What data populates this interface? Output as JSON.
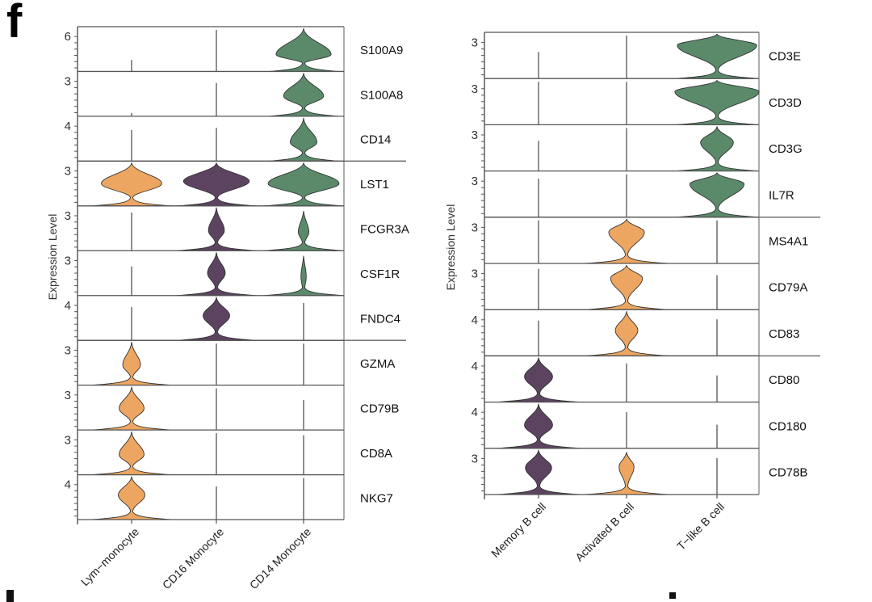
{
  "panel_label": "f",
  "chart_data": [
    {
      "type": "violin",
      "name": "monocyte-subtypes",
      "ylabel": "Expression Level",
      "categories": [
        "Lym−monocyte",
        "CD16 Monocyte",
        "CD14 Monocyte"
      ],
      "colors": {
        "Lym−monocyte": "#EDA661",
        "CD16 Monocyte": "#5C4461",
        "CD14 Monocyte": "#5A8A6A"
      },
      "group_breaks_after": [
        "CD14",
        "FNDC4"
      ],
      "genes": [
        {
          "gene": "S100A9",
          "ytick": 6,
          "ymax": 7,
          "violins": [
            {
              "cat": 0,
              "expressed": false,
              "stem": 0.28
            },
            {
              "cat": 1,
              "expressed": false,
              "stem": 1.0
            },
            {
              "cat": 2,
              "expressed": true,
              "peak": 0.38,
              "width": 0.62,
              "top": 1.0,
              "base": 0.75
            }
          ]
        },
        {
          "gene": "S100A8",
          "ytick": 3,
          "ymax": 4,
          "violins": [
            {
              "cat": 0,
              "expressed": false,
              "stem": 0.08
            },
            {
              "cat": 1,
              "expressed": false,
              "stem": 0.8
            },
            {
              "cat": 2,
              "expressed": true,
              "peak": 0.45,
              "width": 0.45,
              "top": 1.0,
              "base": 0.75
            }
          ]
        },
        {
          "gene": "CD14",
          "ytick": 4,
          "ymax": 5,
          "violins": [
            {
              "cat": 0,
              "expressed": false,
              "stem": 0.75
            },
            {
              "cat": 1,
              "expressed": false,
              "stem": 0.8
            },
            {
              "cat": 2,
              "expressed": true,
              "peak": 0.42,
              "width": 0.3,
              "top": 1.0,
              "base": 0.75
            }
          ]
        },
        {
          "gene": "LST1",
          "ytick": 3,
          "ymax": 3.8,
          "violins": [
            {
              "cat": 0,
              "expressed": true,
              "peak": 0.5,
              "width": 0.68,
              "top": 1.0,
              "base": 0.85
            },
            {
              "cat": 1,
              "expressed": true,
              "peak": 0.55,
              "width": 0.74,
              "top": 1.0,
              "base": 0.85
            },
            {
              "cat": 2,
              "expressed": true,
              "peak": 0.5,
              "width": 0.8,
              "top": 1.0,
              "base": 0.85
            }
          ]
        },
        {
          "gene": "FCGR3A",
          "ytick": 3,
          "ymax": 3.8,
          "violins": [
            {
              "cat": 0,
              "expressed": false,
              "stem": 0.92
            },
            {
              "cat": 1,
              "expressed": true,
              "peak": 0.45,
              "width": 0.18,
              "top": 1.0,
              "base": 0.85
            },
            {
              "cat": 2,
              "expressed": true,
              "peak": 0.42,
              "width": 0.12,
              "top": 0.92,
              "base": 0.85
            }
          ]
        },
        {
          "gene": "CSF1R",
          "ytick": 3,
          "ymax": 3.8,
          "violins": [
            {
              "cat": 0,
              "expressed": false,
              "stem": 0.7
            },
            {
              "cat": 1,
              "expressed": true,
              "peak": 0.5,
              "width": 0.2,
              "top": 1.0,
              "base": 0.85
            },
            {
              "cat": 2,
              "expressed": true,
              "peak": 0.42,
              "width": 0.06,
              "top": 0.92,
              "base": 0.85
            }
          ]
        },
        {
          "gene": "FNDC4",
          "ytick": 4,
          "ymax": 5,
          "violins": [
            {
              "cat": 0,
              "expressed": false,
              "stem": 0.8
            },
            {
              "cat": 1,
              "expressed": true,
              "peak": 0.55,
              "width": 0.3,
              "top": 1.0,
              "base": 0.85
            },
            {
              "cat": 2,
              "expressed": false,
              "stem": 0.9
            }
          ]
        },
        {
          "gene": "GZMA",
          "ytick": 3,
          "ymax": 3.8,
          "violins": [
            {
              "cat": 0,
              "expressed": true,
              "peak": 0.45,
              "width": 0.2,
              "top": 1.0,
              "base": 0.85
            },
            {
              "cat": 1,
              "expressed": false,
              "stem": 1.0
            },
            {
              "cat": 2,
              "expressed": false,
              "stem": 1.0
            }
          ]
        },
        {
          "gene": "CD79B",
          "ytick": 3,
          "ymax": 3.8,
          "violins": [
            {
              "cat": 0,
              "expressed": true,
              "peak": 0.48,
              "width": 0.28,
              "top": 1.0,
              "base": 0.85
            },
            {
              "cat": 1,
              "expressed": false,
              "stem": 1.0
            },
            {
              "cat": 2,
              "expressed": false,
              "stem": 0.72
            }
          ]
        },
        {
          "gene": "CD8A",
          "ytick": 3,
          "ymax": 3.8,
          "violins": [
            {
              "cat": 0,
              "expressed": true,
              "peak": 0.45,
              "width": 0.28,
              "top": 1.0,
              "base": 0.85
            },
            {
              "cat": 1,
              "expressed": false,
              "stem": 1.0
            },
            {
              "cat": 2,
              "expressed": false,
              "stem": 0.95
            }
          ]
        },
        {
          "gene": "NKG7",
          "ytick": 4,
          "ymax": 4.8,
          "violins": [
            {
              "cat": 0,
              "expressed": true,
              "peak": 0.55,
              "width": 0.3,
              "top": 1.0,
              "base": 0.85
            },
            {
              "cat": 1,
              "expressed": false,
              "stem": 0.8
            },
            {
              "cat": 2,
              "expressed": false,
              "stem": 1.0
            }
          ]
        }
      ]
    },
    {
      "type": "violin",
      "name": "b-cell-subtypes",
      "ylabel": "Expression Level",
      "categories": [
        "Memory B cell",
        "Activated B cell",
        "T−like B cell"
      ],
      "colors": {
        "Memory B cell": "#5C4461",
        "Activated B cell": "#EDA661",
        "T−like B cell": "#5A8A6A"
      },
      "group_breaks_after": [
        "IL7R",
        "CD83"
      ],
      "genes": [
        {
          "gene": "CD3E",
          "ytick": 3,
          "ymax": 3.6,
          "violins": [
            {
              "cat": 0,
              "expressed": false,
              "stem": 0.62
            },
            {
              "cat": 1,
              "expressed": false,
              "stem": 1.0
            },
            {
              "cat": 2,
              "expressed": true,
              "peak": 0.72,
              "width": 0.85,
              "top": 1.0,
              "base": 0.85
            }
          ]
        },
        {
          "gene": "CD3D",
          "ytick": 3,
          "ymax": 3.6,
          "violins": [
            {
              "cat": 0,
              "expressed": false,
              "stem": 1.0
            },
            {
              "cat": 1,
              "expressed": false,
              "stem": 1.0
            },
            {
              "cat": 2,
              "expressed": true,
              "peak": 0.72,
              "width": 0.9,
              "top": 1.0,
              "base": 0.85
            }
          ]
        },
        {
          "gene": "CD3G",
          "ytick": 3,
          "ymax": 3.6,
          "violins": [
            {
              "cat": 0,
              "expressed": false,
              "stem": 0.7
            },
            {
              "cat": 1,
              "expressed": false,
              "stem": 1.0
            },
            {
              "cat": 2,
              "expressed": true,
              "peak": 0.62,
              "width": 0.35,
              "top": 1.0,
              "base": 0.85
            }
          ]
        },
        {
          "gene": "IL7R",
          "ytick": 3,
          "ymax": 3.6,
          "violins": [
            {
              "cat": 0,
              "expressed": false,
              "stem": 0.9
            },
            {
              "cat": 1,
              "expressed": false,
              "stem": 1.0
            },
            {
              "cat": 2,
              "expressed": true,
              "peak": 0.72,
              "width": 0.58,
              "top": 1.0,
              "base": 0.85
            }
          ]
        },
        {
          "gene": "MS4A1",
          "ytick": 3,
          "ymax": 3.6,
          "violins": [
            {
              "cat": 0,
              "expressed": false,
              "stem": 1.0
            },
            {
              "cat": 1,
              "expressed": true,
              "peak": 0.68,
              "width": 0.38,
              "top": 1.0,
              "base": 0.85
            },
            {
              "cat": 2,
              "expressed": false,
              "stem": 1.0
            }
          ]
        },
        {
          "gene": "CD79A",
          "ytick": 3,
          "ymax": 3.6,
          "violins": [
            {
              "cat": 0,
              "expressed": false,
              "stem": 0.95
            },
            {
              "cat": 1,
              "expressed": true,
              "peak": 0.68,
              "width": 0.34,
              "top": 1.0,
              "base": 0.85
            },
            {
              "cat": 2,
              "expressed": false,
              "stem": 0.8
            }
          ]
        },
        {
          "gene": "CD83",
          "ytick": 4,
          "ymax": 5,
          "violins": [
            {
              "cat": 0,
              "expressed": false,
              "stem": 0.82
            },
            {
              "cat": 1,
              "expressed": true,
              "peak": 0.55,
              "width": 0.24,
              "top": 1.0,
              "base": 0.85
            },
            {
              "cat": 2,
              "expressed": false,
              "stem": 0.85
            }
          ]
        },
        {
          "gene": "CD80",
          "ytick": 4,
          "ymax": 4.6,
          "violins": [
            {
              "cat": 0,
              "expressed": true,
              "peak": 0.55,
              "width": 0.3,
              "top": 1.0,
              "base": 0.85
            },
            {
              "cat": 1,
              "expressed": false,
              "stem": 0.9
            },
            {
              "cat": 2,
              "expressed": false,
              "stem": 0.62
            }
          ]
        },
        {
          "gene": "CD180",
          "ytick": 4,
          "ymax": 4.6,
          "violins": [
            {
              "cat": 0,
              "expressed": true,
              "peak": 0.5,
              "width": 0.3,
              "top": 1.0,
              "base": 0.85
            },
            {
              "cat": 1,
              "expressed": false,
              "stem": 0.84
            },
            {
              "cat": 2,
              "expressed": false,
              "stem": 0.55
            }
          ]
        },
        {
          "gene": "CD78B",
          "ytick": 3,
          "ymax": 3.8,
          "violins": [
            {
              "cat": 0,
              "expressed": true,
              "peak": 0.58,
              "width": 0.28,
              "top": 1.0,
              "base": 0.85
            },
            {
              "cat": 1,
              "expressed": true,
              "peak": 0.6,
              "width": 0.16,
              "top": 0.95,
              "base": 0.85
            },
            {
              "cat": 2,
              "expressed": false,
              "stem": 0.85
            }
          ]
        }
      ]
    }
  ]
}
